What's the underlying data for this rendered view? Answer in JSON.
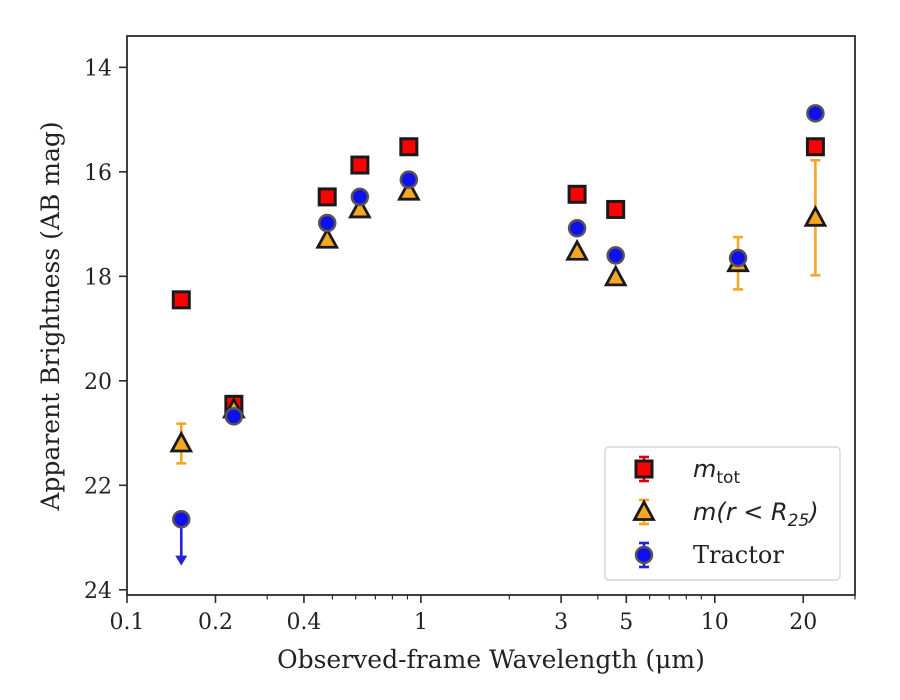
{
  "chart_data": {
    "type": "scatter",
    "x_scale": "log",
    "y_inverted": true,
    "xlim": [
      0.1,
      30
    ],
    "ylim": [
      24.1,
      13.4
    ],
    "xlabel": "Observed-frame Wavelength (μm)",
    "ylabel": "Apparent Brightness (AB mag)",
    "grid": false,
    "legend_position": "lower-right",
    "x_ticks": [
      {
        "value": 0.1,
        "label": "0.1"
      },
      {
        "value": 0.2,
        "label": "0.2"
      },
      {
        "value": 0.4,
        "label": "0.4"
      },
      {
        "value": 1,
        "label": "1"
      },
      {
        "value": 3,
        "label": "3"
      },
      {
        "value": 5,
        "label": "5"
      },
      {
        "value": 10,
        "label": "10"
      },
      {
        "value": 20,
        "label": "20"
      }
    ],
    "x_minor_ticks": [
      0.3,
      0.5,
      0.6,
      0.7,
      0.8,
      0.9,
      2,
      4,
      6,
      7,
      8,
      9,
      30
    ],
    "y_ticks": [
      {
        "value": 14,
        "label": "14"
      },
      {
        "value": 16,
        "label": "16"
      },
      {
        "value": 18,
        "label": "18"
      },
      {
        "value": 20,
        "label": "20"
      },
      {
        "value": 22,
        "label": "22"
      },
      {
        "value": 24,
        "label": "24"
      }
    ],
    "series": [
      {
        "name": "m_tot",
        "legend_label": {
          "main": "m",
          "sub": "tot"
        },
        "marker": "square",
        "fill": "#ff0000",
        "edge": "#1a1a1a",
        "err_color": "#e00000",
        "points": [
          {
            "x": 0.153,
            "y": 18.45,
            "err": 0
          },
          {
            "x": 0.231,
            "y": 20.45,
            "err": 0
          },
          {
            "x": 0.48,
            "y": 16.48,
            "err": 0
          },
          {
            "x": 0.62,
            "y": 15.87,
            "err": 0
          },
          {
            "x": 0.91,
            "y": 15.52,
            "err": 0
          },
          {
            "x": 3.4,
            "y": 16.43,
            "err": 0
          },
          {
            "x": 4.6,
            "y": 16.72,
            "err": 0
          },
          {
            "x": 22,
            "y": 15.52,
            "err": 0
          }
        ]
      },
      {
        "name": "m(r < R25)",
        "legend_label": {
          "main": "m(r < R",
          "sub": "25",
          "after": ")"
        },
        "marker": "triangle",
        "fill": "#f5a623",
        "edge": "#1a1a1a",
        "err_color": "#f5a623",
        "points": [
          {
            "x": 0.153,
            "y": 21.2,
            "err": 0.38
          },
          {
            "x": 0.231,
            "y": 20.55,
            "err": 0
          },
          {
            "x": 0.48,
            "y": 17.3,
            "err": 0
          },
          {
            "x": 0.62,
            "y": 16.72,
            "err": 0
          },
          {
            "x": 0.91,
            "y": 16.38,
            "err": 0
          },
          {
            "x": 3.4,
            "y": 17.53,
            "err": 0
          },
          {
            "x": 4.6,
            "y": 18.02,
            "err": 0
          },
          {
            "x": 12,
            "y": 17.75,
            "err": 0.5
          },
          {
            "x": 22,
            "y": 16.88,
            "err": 1.1
          }
        ]
      },
      {
        "name": "Tractor",
        "legend_label": {
          "main": "Tractor"
        },
        "marker": "circle",
        "fill": "#1010ee",
        "edge": "#555555",
        "err_color": "#2222dd",
        "points": [
          {
            "x": 0.153,
            "y": 22.65,
            "err": 0,
            "upper_limit": true
          },
          {
            "x": 0.231,
            "y": 20.68,
            "err": 0
          },
          {
            "x": 0.48,
            "y": 16.98,
            "err": 0
          },
          {
            "x": 0.62,
            "y": 16.48,
            "err": 0
          },
          {
            "x": 0.91,
            "y": 16.15,
            "err": 0
          },
          {
            "x": 3.4,
            "y": 17.08,
            "err": 0
          },
          {
            "x": 4.6,
            "y": 17.6,
            "err": 0
          },
          {
            "x": 12,
            "y": 17.65,
            "err": 0
          },
          {
            "x": 22,
            "y": 14.88,
            "err": 0
          }
        ]
      }
    ]
  }
}
